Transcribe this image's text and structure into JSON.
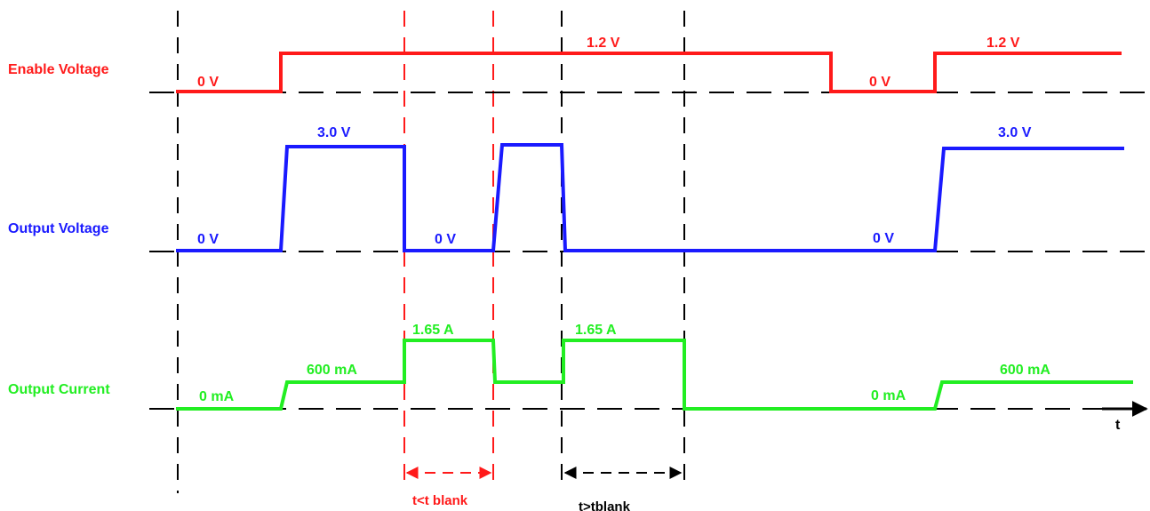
{
  "colors": {
    "enable": "#ff1a1a",
    "output_voltage": "#1a1aff",
    "output_current": "#22ee22",
    "guide": "#000000",
    "blank_marker": "#ff1a1a"
  },
  "signals": {
    "enable": {
      "label": "Enable Voltage",
      "levels": [
        "0 V",
        "1.2 V",
        "0 V",
        "1.2 V"
      ]
    },
    "output_voltage": {
      "label": "Output Voltage",
      "levels": [
        "0 V",
        "3.0  V",
        "0 V",
        "0 V",
        "3.0  V"
      ]
    },
    "output_current": {
      "label": "Output Current",
      "levels": [
        "0 mA",
        "600 mA",
        "1.65  A",
        "1.65  A",
        "0 mA",
        "600 mA"
      ]
    }
  },
  "time_axis": {
    "label": "t"
  },
  "intervals": {
    "short": {
      "label": "t<t blank"
    },
    "long": {
      "label": "t>tblank"
    }
  }
}
